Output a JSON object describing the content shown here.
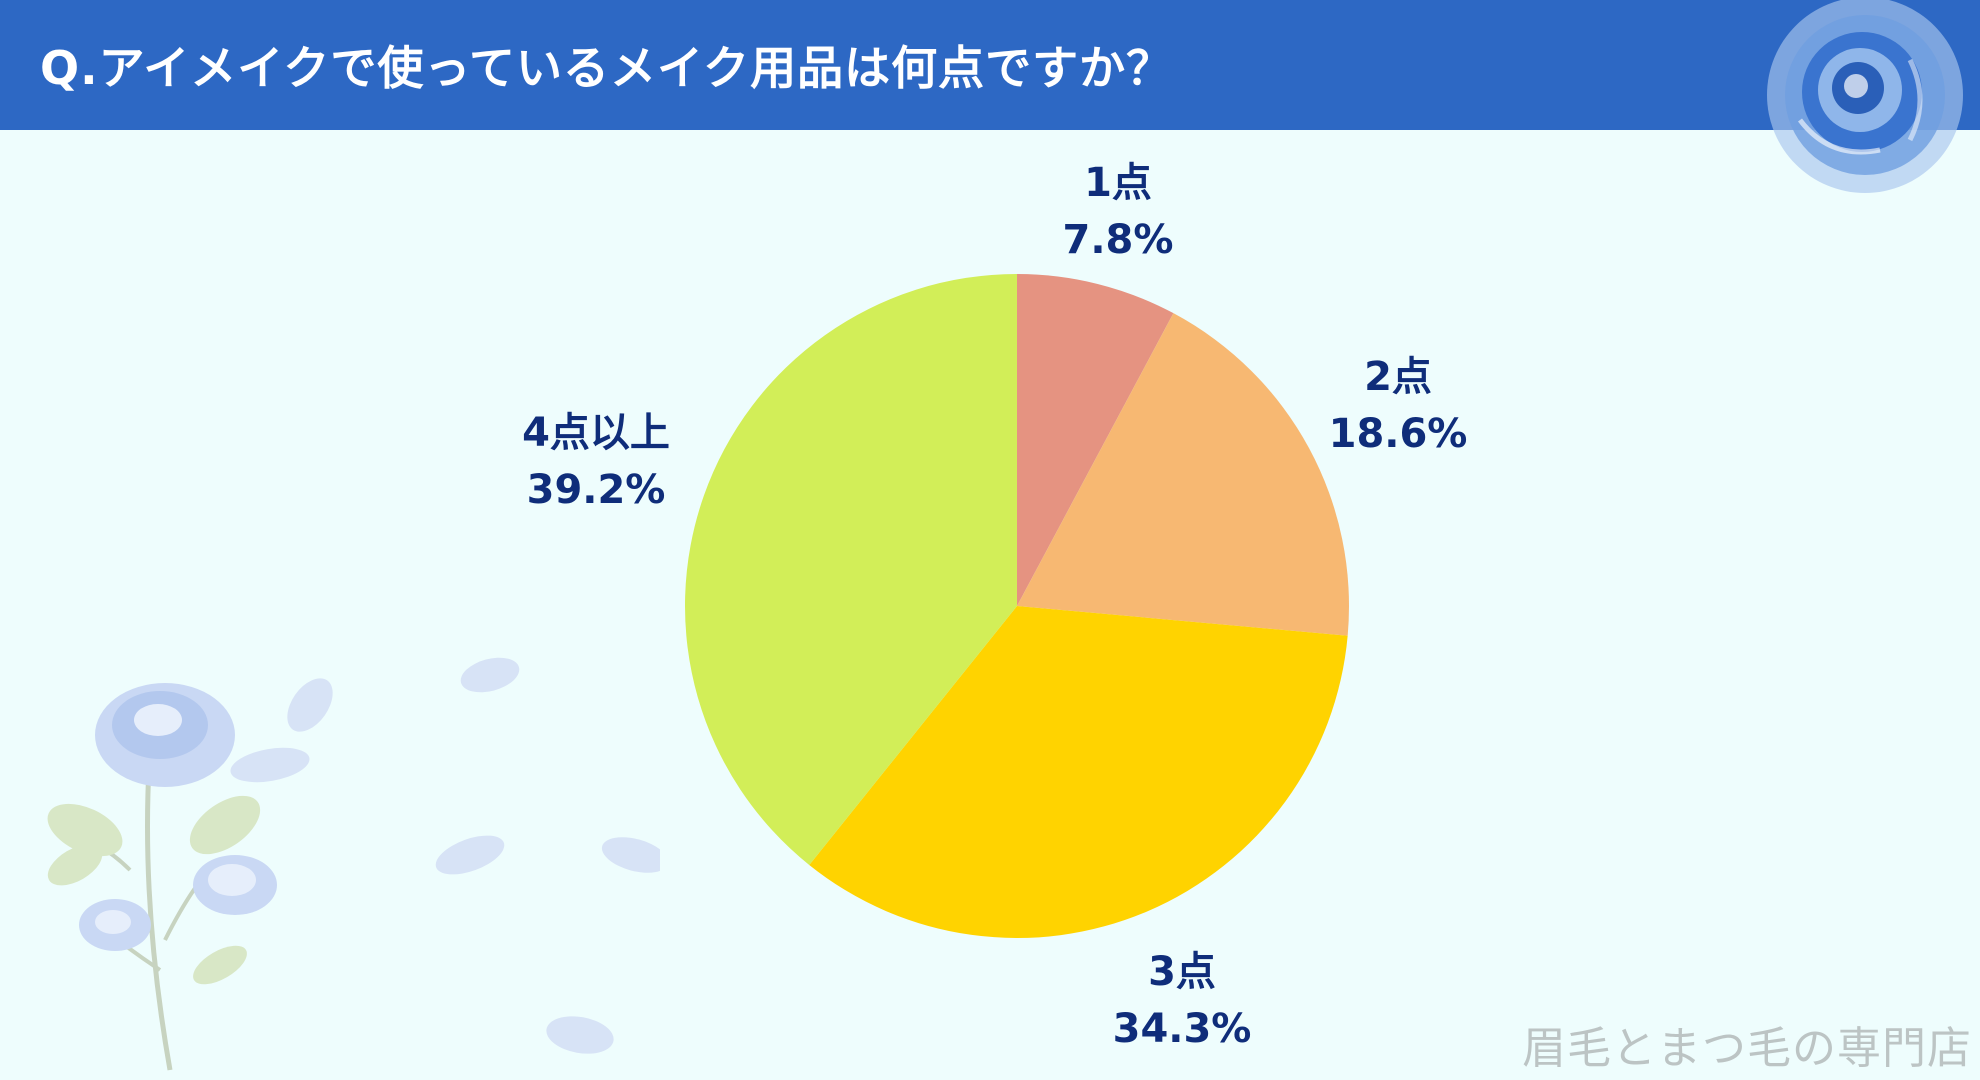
{
  "header": {
    "title": "Q.アイメイクで使っているメイク用品は何点ですか？"
  },
  "watermark": "眉毛とまつ毛の専門店",
  "chart_data": {
    "type": "pie",
    "title": "Q.アイメイクで使っているメイク用品は何点ですか？",
    "start_angle_deg": 0,
    "direction": "clockwise",
    "slices": [
      {
        "label": "1点",
        "value": 7.8,
        "value_label": "7.8%",
        "color": "#e59381"
      },
      {
        "label": "2点",
        "value": 18.6,
        "value_label": "18.6%",
        "color": "#f7b872"
      },
      {
        "label": "3点",
        "value": 34.3,
        "value_label": "34.3%",
        "color": "#ffd300"
      },
      {
        "label": "4点以上",
        "value": 39.2,
        "value_label": "39.2%",
        "color": "#d2ee58"
      }
    ]
  },
  "colors": {
    "header_bg": "#2d68c4",
    "page_bg": "#eefdfd",
    "label_text": "#0f2d7a"
  },
  "decorations": [
    "blue-rose-icon",
    "blue-rose-branch-icon",
    "rose-petal-icon"
  ]
}
